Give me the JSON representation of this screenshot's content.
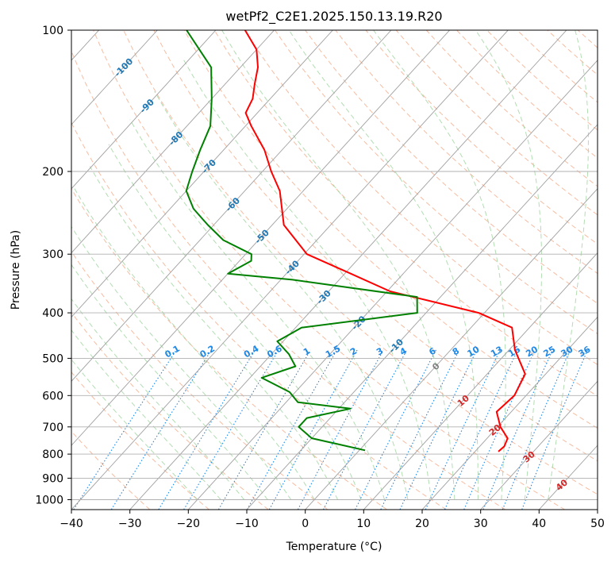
{
  "chart_data": {
    "type": "line",
    "title": "wetPf2_C2E1.2025.150.13.19.R20",
    "xlabel": "Temperature (°C)",
    "ylabel": "Pressure (hPa)",
    "xlim": [
      -40,
      50
    ],
    "ylim": [
      1050,
      100
    ],
    "y_scale": "log",
    "grid": true,
    "x_ticks": [
      -40,
      -30,
      -20,
      -10,
      0,
      10,
      20,
      30,
      40,
      50
    ],
    "y_ticks": [
      100,
      200,
      300,
      400,
      500,
      600,
      700,
      800,
      900,
      1000
    ],
    "isotherm_labels": [
      {
        "text": "-100",
        "t": -100,
        "p": 120
      },
      {
        "text": "-90",
        "t": -90,
        "p": 145
      },
      {
        "text": "-80",
        "t": -80,
        "p": 170
      },
      {
        "text": "-70",
        "t": -70,
        "p": 195
      },
      {
        "text": "-60",
        "t": -60,
        "p": 235
      },
      {
        "text": "-50",
        "t": -50,
        "p": 275
      },
      {
        "text": "-40",
        "t": -40,
        "p": 320
      },
      {
        "text": "-30",
        "t": -30,
        "p": 370
      },
      {
        "text": "-20",
        "t": -20,
        "p": 420
      },
      {
        "text": "-10",
        "t": -10,
        "p": 470
      },
      {
        "text": "0",
        "t": 0,
        "p": 520
      }
    ],
    "dry_adiabat_labels": [
      {
        "text": "10",
        "t": 10,
        "p": 615
      },
      {
        "text": "20",
        "t": 20,
        "p": 710
      },
      {
        "text": "30",
        "t": 30,
        "p": 810
      },
      {
        "text": "40",
        "t": 40,
        "p": 930
      }
    ],
    "mixing_ratio_labels": [
      {
        "text": "0.1",
        "x": -22.5
      },
      {
        "text": "0.2",
        "x": -16.5
      },
      {
        "text": "0.4",
        "x": -9
      },
      {
        "text": "0.6",
        "x": -5
      },
      {
        "text": "1",
        "x": 0.5
      },
      {
        "text": "1.5",
        "x": 5
      },
      {
        "text": "2",
        "x": 8.5
      },
      {
        "text": "3",
        "x": 13
      },
      {
        "text": "4",
        "x": 17
      },
      {
        "text": "6",
        "x": 22
      },
      {
        "text": "8",
        "x": 26
      },
      {
        "text": "10",
        "x": 29
      },
      {
        "text": "13",
        "x": 33
      },
      {
        "text": "16",
        "x": 36
      },
      {
        "text": "20",
        "x": 39
      },
      {
        "text": "25",
        "x": 42
      },
      {
        "text": "30",
        "x": 45
      },
      {
        "text": "36",
        "x": 48
      }
    ],
    "series": [
      {
        "color": "#ff0000",
        "points": [
          {
            "t": 24.0,
            "p": 790
          },
          {
            "t": 24.2,
            "p": 770
          },
          {
            "t": 23.5,
            "p": 740
          },
          {
            "t": 20.5,
            "p": 700
          },
          {
            "t": 17.5,
            "p": 650
          },
          {
            "t": 18.0,
            "p": 600
          },
          {
            "t": 16.5,
            "p": 540
          },
          {
            "t": 11.0,
            "p": 480
          },
          {
            "t": 7.0,
            "p": 430
          },
          {
            "t": -1.0,
            "p": 400
          },
          {
            "t": -10.0,
            "p": 380
          },
          {
            "t": -19.5,
            "p": 360
          },
          {
            "t": -29.0,
            "p": 330
          },
          {
            "t": -39.5,
            "p": 300
          },
          {
            "t": -48.0,
            "p": 260
          },
          {
            "t": -54.0,
            "p": 220
          },
          {
            "t": -58.5,
            "p": 200
          },
          {
            "t": -63.0,
            "p": 180
          },
          {
            "t": -69.0,
            "p": 160
          },
          {
            "t": -72.0,
            "p": 150
          },
          {
            "t": -73.0,
            "p": 140
          },
          {
            "t": -75.0,
            "p": 130
          },
          {
            "t": -77.0,
            "p": 120
          },
          {
            "t": -80.0,
            "p": 110
          },
          {
            "t": -85.0,
            "p": 100
          }
        ]
      },
      {
        "color": "#008000",
        "points": [
          {
            "t": 1.0,
            "p": 785
          },
          {
            "t": -5.0,
            "p": 760
          },
          {
            "t": -10.0,
            "p": 740
          },
          {
            "t": -14.0,
            "p": 700
          },
          {
            "t": -14.0,
            "p": 670
          },
          {
            "t": -8.0,
            "p": 640
          },
          {
            "t": -18.0,
            "p": 620
          },
          {
            "t": -21.0,
            "p": 590
          },
          {
            "t": -28.0,
            "p": 550
          },
          {
            "t": -24.0,
            "p": 520
          },
          {
            "t": -27.0,
            "p": 490
          },
          {
            "t": -31.0,
            "p": 460
          },
          {
            "t": -29.0,
            "p": 430
          },
          {
            "t": -11.5,
            "p": 400
          },
          {
            "t": -14.0,
            "p": 370
          },
          {
            "t": -38.0,
            "p": 340
          },
          {
            "t": -50.0,
            "p": 330
          },
          {
            "t": -48.0,
            "p": 310
          },
          {
            "t": -49.0,
            "p": 300
          },
          {
            "t": -56.0,
            "p": 280
          },
          {
            "t": -61.0,
            "p": 260
          },
          {
            "t": -66.0,
            "p": 240
          },
          {
            "t": -70.0,
            "p": 220
          },
          {
            "t": -72.0,
            "p": 200
          },
          {
            "t": -74.0,
            "p": 180
          },
          {
            "t": -76.0,
            "p": 160
          },
          {
            "t": -80.0,
            "p": 140
          },
          {
            "t": -85.0,
            "p": 120
          },
          {
            "t": -95.0,
            "p": 100
          }
        ]
      }
    ],
    "colors": {
      "temperature": "#ff0000",
      "dewpoint": "#008000",
      "isotherm_label": "#1f77b4",
      "mixing_ratio": "#1e88e5",
      "dry_adiabat": "#f4a582",
      "dry_adiabat_label": "#d62728",
      "moist_adiabat": "#9fd49f",
      "zero_isotherm_label": "#808080",
      "grid": "#b0b0b0"
    }
  }
}
